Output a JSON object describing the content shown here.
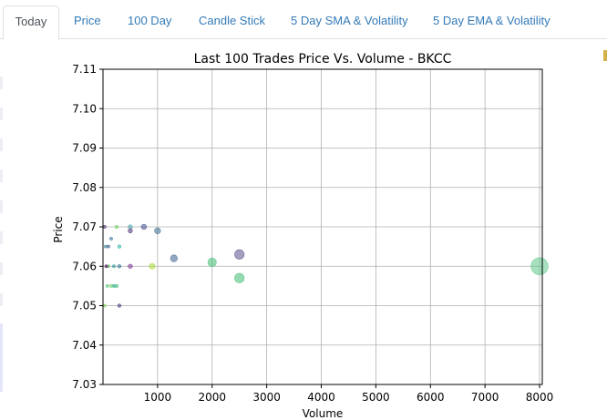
{
  "tabs": [
    {
      "label": "Today",
      "active": true
    },
    {
      "label": "Price",
      "active": false
    },
    {
      "label": "100 Day",
      "active": false
    },
    {
      "label": "Candle Stick",
      "active": false
    },
    {
      "label": "5 Day SMA & Volatility",
      "active": false
    },
    {
      "label": "5 Day EMA & Volatility",
      "active": false
    }
  ],
  "colors": {
    "tab_link": "#337ab7",
    "tab_active": "#495057",
    "grid": "#b0b0b0"
  },
  "chart_data": {
    "type": "scatter",
    "title": "Last 100 Trades Price Vs. Volume - BKCC",
    "xlabel": "Volume",
    "ylabel": "Price",
    "xlim": [
      0,
      8050
    ],
    "ylim": [
      7.03,
      7.11
    ],
    "xticks": [
      1000,
      2000,
      3000,
      4000,
      5000,
      6000,
      7000,
      8000
    ],
    "yticks": [
      7.03,
      7.04,
      7.05,
      7.06,
      7.07,
      7.08,
      7.09,
      7.1,
      7.11
    ],
    "ytick_labels": [
      "7.03",
      "7.04",
      "7.05",
      "7.06",
      "7.07",
      "7.08",
      "7.09",
      "7.10",
      "7.11"
    ],
    "grid": true,
    "points": [
      {
        "x": 8000,
        "y": 7.06,
        "color": "#5cc68a"
      },
      {
        "x": 2500,
        "y": 7.063,
        "color": "#5a4e8c"
      },
      {
        "x": 2500,
        "y": 7.057,
        "color": "#3fbc73"
      },
      {
        "x": 2000,
        "y": 7.061,
        "color": "#3fbc73"
      },
      {
        "x": 1300,
        "y": 7.062,
        "color": "#3a5e8c"
      },
      {
        "x": 1000,
        "y": 7.069,
        "color": "#3b6b8f"
      },
      {
        "x": 900,
        "y": 7.06,
        "color": "#a8db34"
      },
      {
        "x": 750,
        "y": 7.07,
        "color": "#3e4a89"
      },
      {
        "x": 500,
        "y": 7.07,
        "color": "#46a4a8"
      },
      {
        "x": 500,
        "y": 7.069,
        "color": "#482878"
      },
      {
        "x": 500,
        "y": 7.06,
        "color": "#7a2d8c"
      },
      {
        "x": 300,
        "y": 7.065,
        "color": "#26b2a2"
      },
      {
        "x": 300,
        "y": 7.06,
        "color": "#2c728e"
      },
      {
        "x": 300,
        "y": 7.05,
        "color": "#472d7b"
      },
      {
        "x": 250,
        "y": 7.07,
        "color": "#6ece58"
      },
      {
        "x": 250,
        "y": 7.055,
        "color": "#35b779"
      },
      {
        "x": 200,
        "y": 7.055,
        "color": "#1fa187"
      },
      {
        "x": 200,
        "y": 7.06,
        "color": "#21918c"
      },
      {
        "x": 150,
        "y": 7.067,
        "color": "#31688e"
      },
      {
        "x": 150,
        "y": 7.055,
        "color": "#5ec962"
      },
      {
        "x": 100,
        "y": 7.06,
        "color": "#5ec962"
      },
      {
        "x": 100,
        "y": 7.065,
        "color": "#3b528b"
      },
      {
        "x": 80,
        "y": 7.055,
        "color": "#4ac16d"
      },
      {
        "x": 60,
        "y": 7.06,
        "color": "#440154"
      },
      {
        "x": 50,
        "y": 7.065,
        "color": "#2a788e"
      },
      {
        "x": 30,
        "y": 7.07,
        "color": "#482475"
      },
      {
        "x": 30,
        "y": 7.05,
        "color": "#7ad151"
      }
    ]
  }
}
